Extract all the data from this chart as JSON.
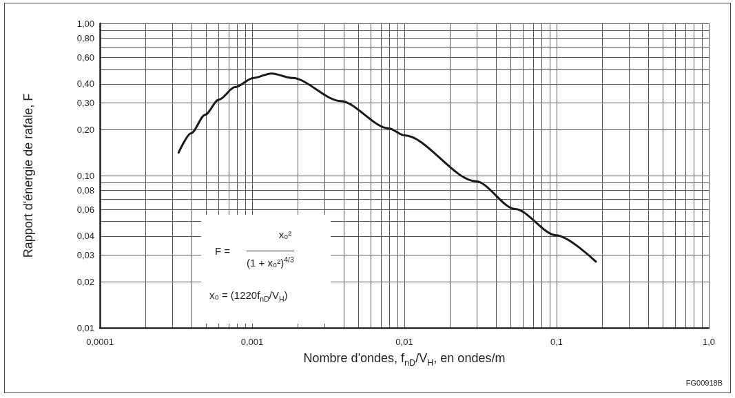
{
  "chart_data": {
    "type": "line",
    "xlabel": "Nombre d'ondes, f$_{nD}$/V$_{H}$, en ondes/m",
    "ylabel": "Rapport d'énergie de rafale, F",
    "annotations": [
      "F =",
      "x₀²",
      "(1 + x₀²)$^{4/3}$",
      "x₀ = (1220f$_{nD}$/V$_{H}$)",
      "FG00918B"
    ],
    "x": [
      0.000329,
      0.000398,
      0.000491,
      0.000604,
      0.000771,
      0.00102,
      0.00134,
      0.00184,
      0.00381,
      0.0079,
      0.01,
      0.0296,
      0.0533,
      0.0995,
      0.181
    ],
    "series": [
      {
        "color": "#1a1a1a",
        "values": [
          0.1415,
          0.19,
          0.251,
          0.315,
          0.381,
          0.438,
          0.469,
          0.438,
          0.309,
          0.204,
          0.184,
          0.0917,
          0.0604,
          0.0405,
          0.0272
        ]
      }
    ],
    "log": "xy",
    "grid": true,
    "marker": "none",
    "line_style": "solid",
    "xlim": [
      0.0001,
      1
    ],
    "ylim": [
      0.01,
      1
    ],
    "xticks": [
      {
        "value": 0.0001,
        "label": "0,0001"
      },
      {
        "value": 0.001,
        "label": "0,001"
      },
      {
        "value": 0.01,
        "label": "0,01"
      },
      {
        "value": 0.1,
        "label": "0,1"
      },
      {
        "value": 1,
        "label": "1,0"
      }
    ],
    "yticks": [
      {
        "value": 0.01,
        "label": "0,01"
      },
      {
        "value": 0.02,
        "label": "0,02"
      },
      {
        "value": 0.03,
        "label": "0,03"
      },
      {
        "value": 0.04,
        "label": "0,04"
      },
      {
        "value": 0.06,
        "label": "0,06"
      },
      {
        "value": 0.08,
        "label": "0,08"
      },
      {
        "value": 0.1,
        "label": "0,10"
      },
      {
        "value": 0.2,
        "label": "0,20"
      },
      {
        "value": 0.3,
        "label": "0,30"
      },
      {
        "value": 0.4,
        "label": "0,40"
      },
      {
        "value": 0.6,
        "label": "0,60"
      },
      {
        "value": 0.8,
        "label": "0,80"
      },
      {
        "value": 1,
        "label": "1,00"
      }
    ]
  }
}
